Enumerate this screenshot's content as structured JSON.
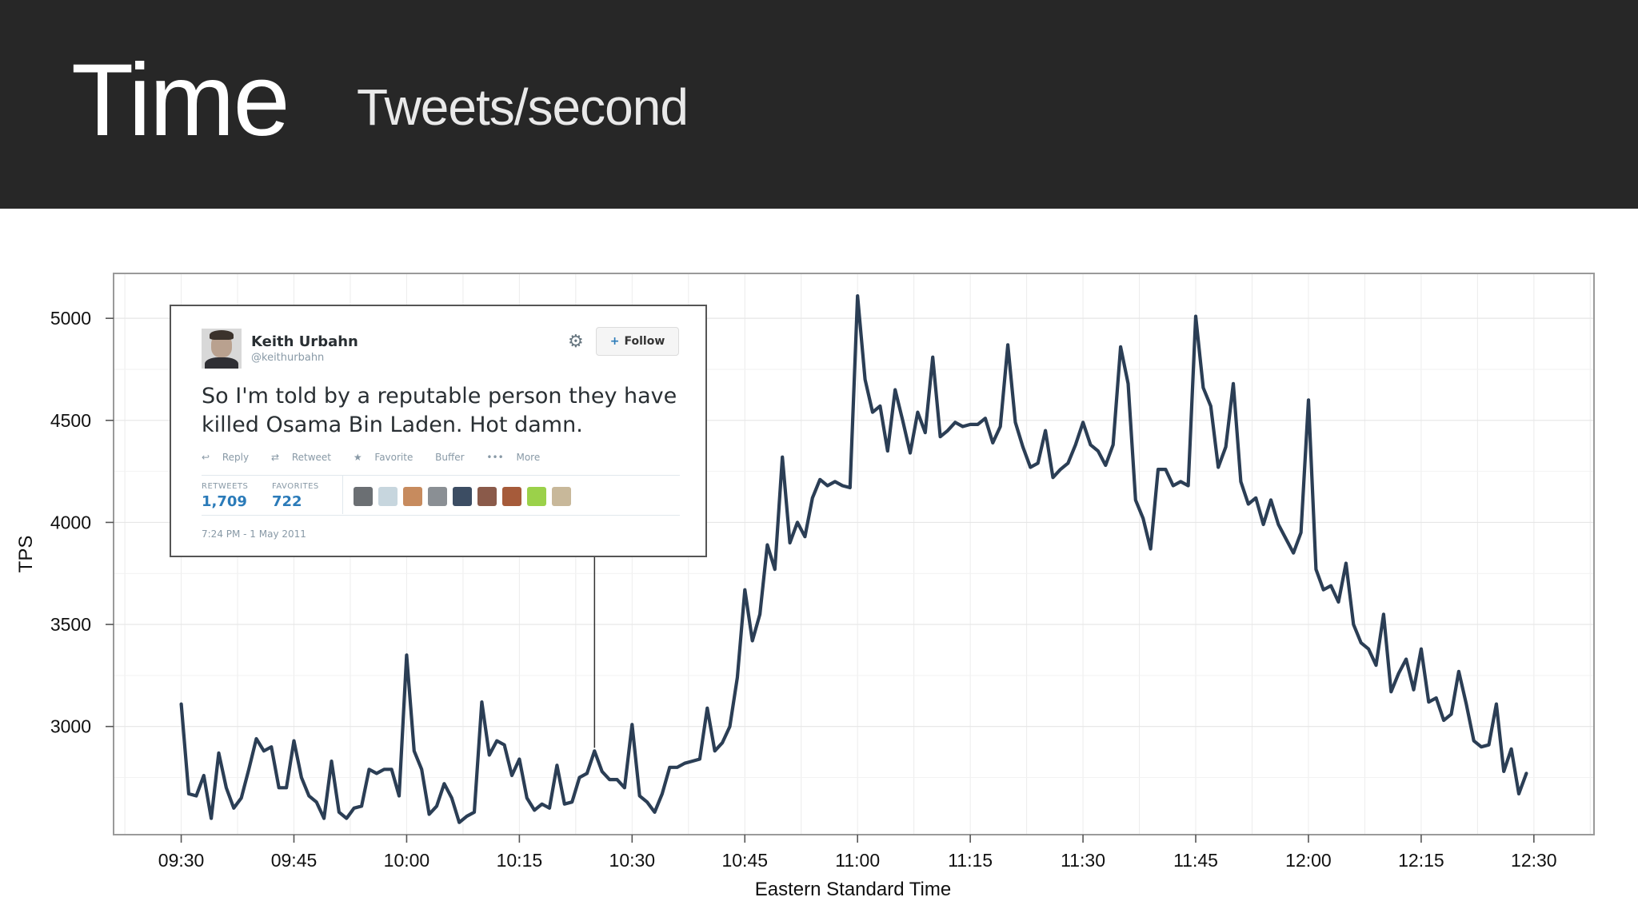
{
  "slide": {
    "title": "Time",
    "subtitle": "Tweets/second"
  },
  "chart_data": {
    "type": "line",
    "xlabel": "Eastern Standard Time",
    "ylabel": "TPS",
    "x_tick_labels": [
      "09:30",
      "09:45",
      "10:00",
      "10:15",
      "10:30",
      "10:45",
      "11:00",
      "11:15",
      "11:30",
      "11:45",
      "12:00",
      "12:15",
      "12:30"
    ],
    "y_ticks": [
      3000,
      3500,
      4000,
      4500,
      5000
    ],
    "ylim": [
      2470,
      5220
    ],
    "xlim": [
      "09:21",
      "12:38"
    ],
    "grid": true,
    "line_color": "#2b3e55",
    "series": [
      {
        "times": [
          "09:30",
          "09:31",
          "09:32",
          "09:33",
          "09:34",
          "09:35",
          "09:36",
          "09:37",
          "09:38",
          "09:39",
          "09:40",
          "09:41",
          "09:42",
          "09:43",
          "09:44",
          "09:45",
          "09:46",
          "09:47",
          "09:48",
          "09:49",
          "09:50",
          "09:51",
          "09:52",
          "09:53",
          "09:54",
          "09:55",
          "09:56",
          "09:57",
          "09:58",
          "09:59",
          "10:00",
          "10:01",
          "10:02",
          "10:03",
          "10:04",
          "10:05",
          "10:06",
          "10:07",
          "10:08",
          "10:09",
          "10:10",
          "10:11",
          "10:12",
          "10:13",
          "10:14",
          "10:15",
          "10:16",
          "10:17",
          "10:18",
          "10:19",
          "10:20",
          "10:21",
          "10:22",
          "10:23",
          "10:24",
          "10:25",
          "10:26",
          "10:27",
          "10:28",
          "10:29",
          "10:30",
          "10:31",
          "10:32",
          "10:33",
          "10:34",
          "10:35",
          "10:36",
          "10:37",
          "10:38",
          "10:39",
          "10:40",
          "10:41",
          "10:42",
          "10:43",
          "10:44",
          "10:45",
          "10:46",
          "10:47",
          "10:48",
          "10:49",
          "10:50",
          "10:51",
          "10:52",
          "10:53",
          "10:54",
          "10:55",
          "10:56",
          "10:57",
          "10:58",
          "10:59",
          "11:00",
          "11:01",
          "11:02",
          "11:03",
          "11:04",
          "11:05",
          "11:06",
          "11:07",
          "11:08",
          "11:09",
          "11:10",
          "11:11",
          "11:12",
          "11:13",
          "11:14",
          "11:15",
          "11:16",
          "11:17",
          "11:18",
          "11:19",
          "11:20",
          "11:21",
          "11:22",
          "11:23",
          "11:24",
          "11:25",
          "11:26",
          "11:27",
          "11:28",
          "11:29",
          "11:30",
          "11:31",
          "11:32",
          "11:33",
          "11:34",
          "11:35",
          "11:36",
          "11:37",
          "11:38",
          "11:39",
          "11:40",
          "11:41",
          "11:42",
          "11:43",
          "11:44",
          "11:45",
          "11:46",
          "11:47",
          "11:48",
          "11:49",
          "11:50",
          "11:51",
          "11:52",
          "11:53",
          "11:54",
          "11:55",
          "11:56",
          "11:57",
          "11:58",
          "11:59",
          "12:00",
          "12:01",
          "12:02",
          "12:03",
          "12:04",
          "12:05",
          "12:06",
          "12:07",
          "12:08",
          "12:09",
          "12:10",
          "12:11",
          "12:12",
          "12:13",
          "12:14",
          "12:15",
          "12:16",
          "12:17",
          "12:18",
          "12:19",
          "12:20",
          "12:21",
          "12:22",
          "12:23",
          "12:24",
          "12:25",
          "12:26",
          "12:27",
          "12:28",
          "12:29"
        ],
        "values": [
          3110,
          2670,
          2660,
          2760,
          2550,
          2870,
          2700,
          2600,
          2650,
          2790,
          2940,
          2880,
          2900,
          2700,
          2700,
          2930,
          2750,
          2660,
          2630,
          2550,
          2830,
          2580,
          2550,
          2600,
          2610,
          2790,
          2770,
          2790,
          2790,
          2660,
          3350,
          2880,
          2790,
          2570,
          2610,
          2720,
          2650,
          2530,
          2560,
          2580,
          3120,
          2860,
          2930,
          2910,
          2760,
          2840,
          2650,
          2590,
          2620,
          2600,
          2810,
          2620,
          2630,
          2750,
          2770,
          2880,
          2780,
          2740,
          2740,
          2700,
          3010,
          2660,
          2630,
          2580,
          2670,
          2800,
          2800,
          2820,
          2830,
          2840,
          3090,
          2880,
          2920,
          3000,
          3240,
          3670,
          3420,
          3550,
          3890,
          3770,
          4320,
          3900,
          4000,
          3930,
          4120,
          4210,
          4180,
          4200,
          4180,
          4170,
          5110,
          4700,
          4540,
          4570,
          4350,
          4650,
          4500,
          4340,
          4540,
          4440,
          4810,
          4420,
          4450,
          4490,
          4470,
          4480,
          4480,
          4510,
          4390,
          4470,
          4870,
          4490,
          4370,
          4270,
          4290,
          4450,
          4220,
          4260,
          4290,
          4380,
          4490,
          4380,
          4350,
          4280,
          4380,
          4860,
          4680,
          4110,
          4020,
          3870,
          4260,
          4260,
          4180,
          4200,
          4180,
          5010,
          4660,
          4570,
          4270,
          4370,
          4680,
          4200,
          4090,
          4120,
          3990,
          4110,
          3990,
          3920,
          3850,
          3950,
          4600,
          3770,
          3670,
          3690,
          3610,
          3800,
          3500,
          3410,
          3380,
          3300,
          3550,
          3170,
          3260,
          3330,
          3180,
          3380,
          3120,
          3140,
          3030,
          3060,
          3270,
          3110,
          2930,
          2900,
          2910,
          3110,
          2780,
          2890,
          2670,
          2770
        ]
      }
    ],
    "annotation_tweet": {
      "name": "Keith Urbahn",
      "handle": "@keithurbahn",
      "follow_label": "Follow",
      "text": "So I'm told by a reputable person they have killed Osama Bin Laden. Hot damn.",
      "actions": [
        "Reply",
        "Retweet",
        "Favorite",
        "Buffer",
        "More"
      ],
      "retweets_label": "RETWEETS",
      "retweets": "1,709",
      "favorites_label": "FAVORITES",
      "favorites": "722",
      "timestamp": "7:24 PM - 1 May 2011",
      "points_to_time": "10:25"
    }
  }
}
